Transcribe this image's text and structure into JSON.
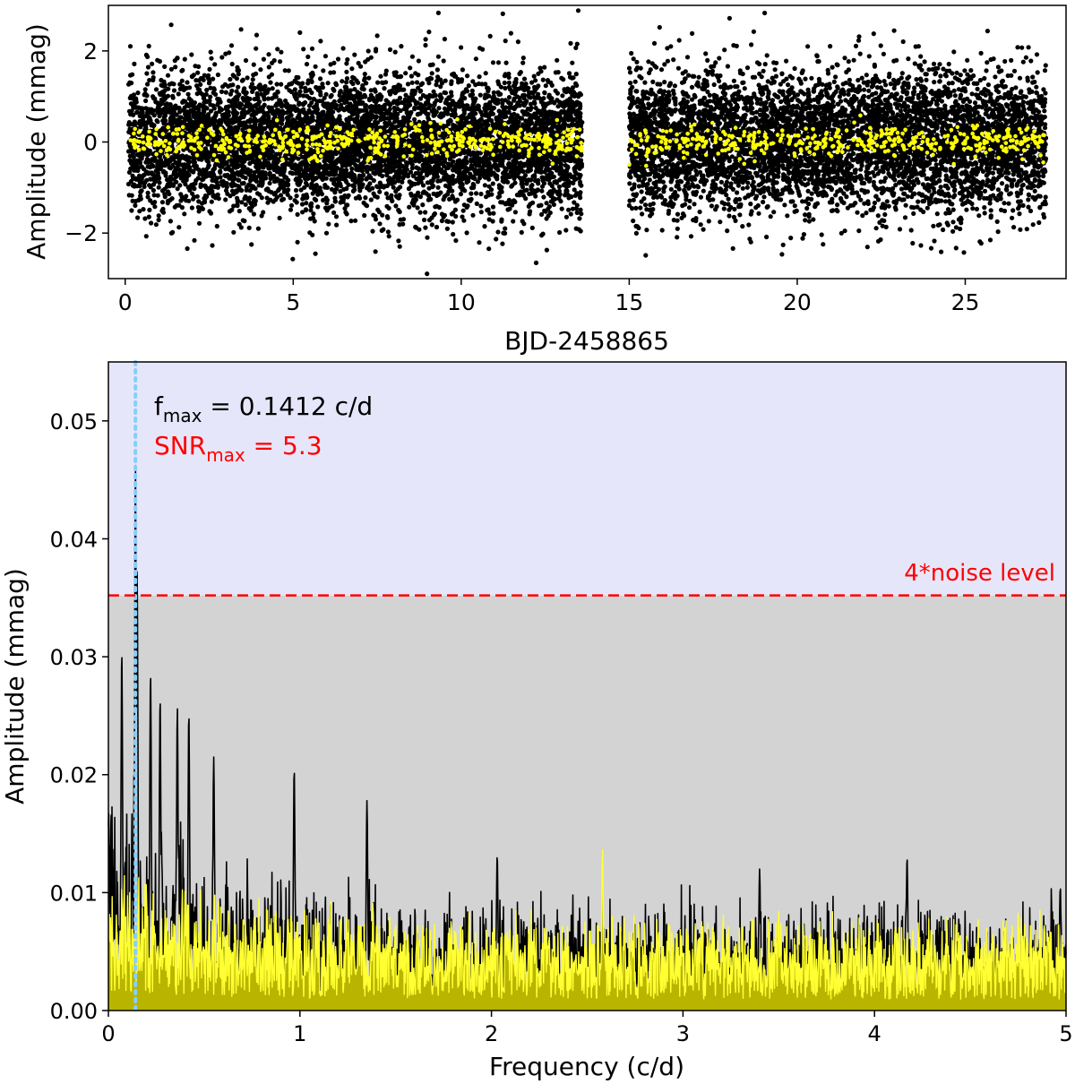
{
  "colors": {
    "raw_points": "#000000",
    "binned_points": "#ffff00",
    "threshold_band": "#e6e6fa",
    "noise_band": "#d3d3d3",
    "raw_spectrum": "#000000",
    "binned_spectrum": "#ffff33",
    "binned_spectrum_fill": "#b8b400",
    "fmax_marker": "#87cefa",
    "noise_line": "#ff0000"
  },
  "chart_data": [
    {
      "type": "scatter",
      "name": "light-curve",
      "xlabel": "BJD-2458865",
      "ylabel": "Amplitude (mmag)",
      "xlim": [
        -0.5,
        28.0
      ],
      "ylim": [
        -3.0,
        3.0
      ],
      "xticks": [
        0,
        5,
        10,
        15,
        20,
        25
      ],
      "xtick_labels": [
        "0",
        "5",
        "10",
        "15",
        "20",
        "25"
      ],
      "yticks": [
        -2,
        0,
        2
      ],
      "ytick_labels": [
        "−2",
        "0",
        "2"
      ],
      "segments": [
        [
          0.1,
          13.6
        ],
        [
          15.0,
          27.4
        ]
      ],
      "series": [
        {
          "name": "raw",
          "n_points": 12000,
          "mean": 0.0,
          "std": 0.75
        },
        {
          "name": "binned",
          "n_points": 900,
          "mean": 0.0,
          "std": 0.17
        }
      ]
    },
    {
      "type": "line",
      "name": "amplitude-spectrum",
      "xlabel": "Frequency (c/d)",
      "ylabel": "Amplitude (mmag)",
      "xlim": [
        0,
        5
      ],
      "ylim": [
        0,
        0.055
      ],
      "xticks": [
        0,
        1,
        2,
        3,
        4,
        5
      ],
      "xtick_labels": [
        "0",
        "1",
        "2",
        "3",
        "4",
        "5"
      ],
      "yticks": [
        0,
        0.01,
        0.02,
        0.03,
        0.04,
        0.05
      ],
      "ytick_labels": [
        "0.00",
        "0.01",
        "0.02",
        "0.03",
        "0.04",
        "0.05"
      ],
      "noise_threshold": 0.0352,
      "noise_label": "4*noise level",
      "fmax": {
        "value": 0.1412,
        "amplitude": 0.0465,
        "label_prefix": "f",
        "label_sub": "max",
        "label_value": " = 0.1412 c/d"
      },
      "snrmax": {
        "value": 5.3,
        "label_prefix": "SNR",
        "label_sub": "max",
        "label_value": " = 5.3"
      },
      "series": [
        {
          "name": "raw",
          "peaks": [
            {
              "f": 0.1412,
              "a": 0.0465
            },
            {
              "f": 0.15,
              "a": 0.0372
            },
            {
              "f": 0.07,
              "a": 0.0305
            },
            {
              "f": 0.22,
              "a": 0.0287
            },
            {
              "f": 0.27,
              "a": 0.0265
            },
            {
              "f": 0.36,
              "a": 0.0257
            },
            {
              "f": 0.42,
              "a": 0.0252
            },
            {
              "f": 0.55,
              "a": 0.0215
            },
            {
              "f": 0.97,
              "a": 0.0205
            },
            {
              "f": 1.35,
              "a": 0.0178
            },
            {
              "f": 0.0,
              "a": 0.0156
            },
            {
              "f": 2.03,
              "a": 0.0132
            },
            {
              "f": 3.4,
              "a": 0.012
            },
            {
              "f": 4.17,
              "a": 0.013
            },
            {
              "f": 4.97,
              "a": 0.0105
            }
          ],
          "envelope": {
            "base": 0.0062,
            "decay_amp": 0.0072,
            "decay_scale": 0.55
          }
        },
        {
          "name": "binned",
          "envelope": {
            "base": 0.0062,
            "decay_amp": 0.0028,
            "decay_scale": 0.9
          },
          "peak": {
            "f": 2.58,
            "a": 0.0138
          }
        }
      ]
    }
  ]
}
